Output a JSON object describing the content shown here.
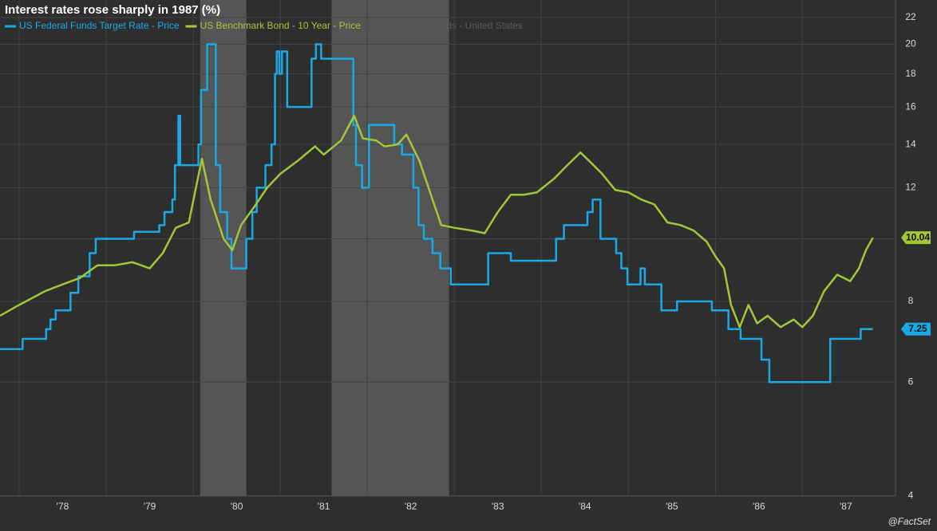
{
  "chart_data": {
    "type": "line",
    "title": "Interest rates rose sharply in 1987 (%)",
    "source": "@FactSet",
    "log_y": true,
    "grid": true,
    "legend": "top-left",
    "xlim": [
      1977.78,
      1988.07
    ],
    "xticks": [
      {
        "value": 1978,
        "label": "'78"
      },
      {
        "value": 1979,
        "label": "'79"
      },
      {
        "value": 1980,
        "label": "'80"
      },
      {
        "value": 1981,
        "label": "'81"
      },
      {
        "value": 1982,
        "label": "'82"
      },
      {
        "value": 1983,
        "label": "'83"
      },
      {
        "value": 1984,
        "label": "'84"
      },
      {
        "value": 1985,
        "label": "'85"
      },
      {
        "value": 1986,
        "label": "'86"
      },
      {
        "value": 1987,
        "label": "'87"
      }
    ],
    "ylim": [
      4,
      22
    ],
    "yticks": [
      4,
      6,
      8,
      10,
      12,
      14,
      16,
      18,
      20,
      22
    ],
    "recession_name": "Recession Periods - United States",
    "recession_color": "#555555",
    "recessions": [
      [
        1980.08,
        1980.61
      ],
      [
        1981.59,
        1982.94
      ]
    ],
    "series": [
      {
        "name": "US Federal Funds Target Rate - Price",
        "color": "#1aa9e5",
        "x": [
          1977.78,
          1978.04,
          1978.04,
          1978.31,
          1978.31,
          1978.36,
          1978.36,
          1978.42,
          1978.42,
          1978.59,
          1978.59,
          1978.68,
          1978.68,
          1978.81,
          1978.81,
          1978.88,
          1978.88,
          1979.32,
          1979.32,
          1979.61,
          1979.61,
          1979.67,
          1979.67,
          1979.76,
          1979.76,
          1979.79,
          1979.79,
          1979.83,
          1979.83,
          1979.85,
          1979.85,
          1980.06,
          1980.06,
          1980.09,
          1980.09,
          1980.16,
          1980.16,
          1980.26,
          1980.26,
          1980.31,
          1980.31,
          1980.39,
          1980.39,
          1980.44,
          1980.44,
          1980.61,
          1980.61,
          1980.68,
          1980.68,
          1980.73,
          1980.73,
          1980.83,
          1980.83,
          1980.9,
          1980.9,
          1980.94,
          1980.94,
          1980.96,
          1980.96,
          1980.99,
          1980.99,
          1981.02,
          1981.02,
          1981.08,
          1981.08,
          1981.36,
          1981.36,
          1981.41,
          1981.41,
          1981.47,
          1981.47,
          1981.84,
          1981.84,
          1981.87,
          1981.87,
          1981.94,
          1981.94,
          1982.02,
          1982.02,
          1982.31,
          1982.31,
          1982.4,
          1982.4,
          1982.53,
          1982.53,
          1982.59,
          1982.59,
          1982.65,
          1982.65,
          1982.75,
          1982.75,
          1982.84,
          1982.84,
          1982.96,
          1982.96,
          1983.39,
          1983.39,
          1983.65,
          1983.65,
          1984.17,
          1984.17,
          1984.26,
          1984.26,
          1984.53,
          1984.53,
          1984.59,
          1984.59,
          1984.68,
          1984.68,
          1984.86,
          1984.86,
          1984.92,
          1984.92,
          1984.99,
          1984.99,
          1985.14,
          1985.14,
          1985.19,
          1985.19,
          1985.38,
          1985.38,
          1985.56,
          1985.56,
          1985.96,
          1985.96,
          1986.15,
          1986.15,
          1986.29,
          1986.29,
          1986.53,
          1986.53,
          1986.62,
          1986.62,
          1987.32,
          1987.32,
          1987.67,
          1987.67,
          1987.81
        ],
        "values": [
          6.75,
          6.75,
          7,
          7,
          7.25,
          7.25,
          7.5,
          7.5,
          7.75,
          7.75,
          8.25,
          8.25,
          8.75,
          8.75,
          9.5,
          9.5,
          10,
          10,
          10.25,
          10.25,
          10.5,
          10.5,
          11,
          11,
          11.5,
          11.5,
          13,
          13,
          15.5,
          15.5,
          13,
          13,
          14,
          14,
          17,
          17,
          20,
          20,
          13,
          13,
          11,
          11,
          10,
          10,
          9,
          9,
          10,
          10,
          11,
          11,
          12,
          12,
          13,
          13,
          14,
          14,
          18,
          18,
          19.5,
          19.5,
          18,
          18,
          19.5,
          19.5,
          16,
          16,
          19,
          19,
          20,
          20,
          19,
          19,
          15,
          15,
          13,
          13,
          12,
          12,
          15,
          15,
          14,
          14,
          13.5,
          13.5,
          12,
          12,
          10.5,
          10.5,
          10,
          10,
          9.5,
          9.5,
          9,
          9,
          8.5,
          8.5,
          9.5,
          9.5,
          9.25,
          9.25,
          10,
          10,
          10.5,
          10.5,
          11,
          11,
          11.5,
          11.5,
          10,
          10,
          9.5,
          9.5,
          9,
          9,
          8.5,
          8.5,
          9,
          9,
          8.5,
          8.5,
          7.75,
          7.75,
          8,
          8,
          7.75,
          7.75,
          7.25,
          7.25,
          7,
          7,
          6.5,
          6.5,
          6,
          6,
          7,
          7,
          7.25,
          7.25
        ]
      },
      {
        "name": "US Benchmark Bond - 10 Year - Price",
        "color": "#a4c639",
        "x": [
          1977.78,
          1978.0,
          1978.3,
          1978.5,
          1978.7,
          1978.9,
          1979.1,
          1979.3,
          1979.5,
          1979.65,
          1979.8,
          1979.95,
          1980.1,
          1980.2,
          1980.35,
          1980.45,
          1980.55,
          1980.7,
          1980.85,
          1981.0,
          1981.2,
          1981.4,
          1981.5,
          1981.7,
          1981.85,
          1981.95,
          1982.1,
          1982.2,
          1982.35,
          1982.45,
          1982.6,
          1982.75,
          1982.85,
          1983.0,
          1983.2,
          1983.35,
          1983.5,
          1983.65,
          1983.8,
          1983.95,
          1984.15,
          1984.3,
          1984.45,
          1984.55,
          1984.7,
          1984.85,
          1985.0,
          1985.15,
          1985.3,
          1985.45,
          1985.6,
          1985.75,
          1985.9,
          1986.0,
          1986.1,
          1986.18,
          1986.28,
          1986.38,
          1986.48,
          1986.6,
          1986.75,
          1986.9,
          1987.0,
          1987.12,
          1987.25,
          1987.4,
          1987.55,
          1987.65,
          1987.73,
          1987.81
        ],
        "values": [
          7.6,
          7.9,
          8.3,
          8.5,
          8.7,
          9.1,
          9.1,
          9.2,
          9.0,
          9.5,
          10.4,
          10.6,
          13.3,
          11.5,
          10.0,
          9.6,
          10.5,
          11.2,
          12.0,
          12.6,
          13.2,
          13.9,
          13.5,
          14.2,
          15.5,
          14.3,
          14.2,
          13.9,
          14.0,
          14.5,
          13.2,
          11.5,
          10.5,
          10.4,
          10.3,
          10.2,
          11.0,
          11.7,
          11.7,
          11.8,
          12.4,
          13.0,
          13.6,
          13.2,
          12.6,
          11.9,
          11.8,
          11.5,
          11.3,
          10.6,
          10.5,
          10.3,
          9.9,
          9.4,
          9.0,
          7.9,
          7.3,
          7.9,
          7.4,
          7.6,
          7.3,
          7.5,
          7.3,
          7.6,
          8.3,
          8.8,
          8.6,
          9.0,
          9.6,
          10.04
        ]
      }
    ]
  }
}
